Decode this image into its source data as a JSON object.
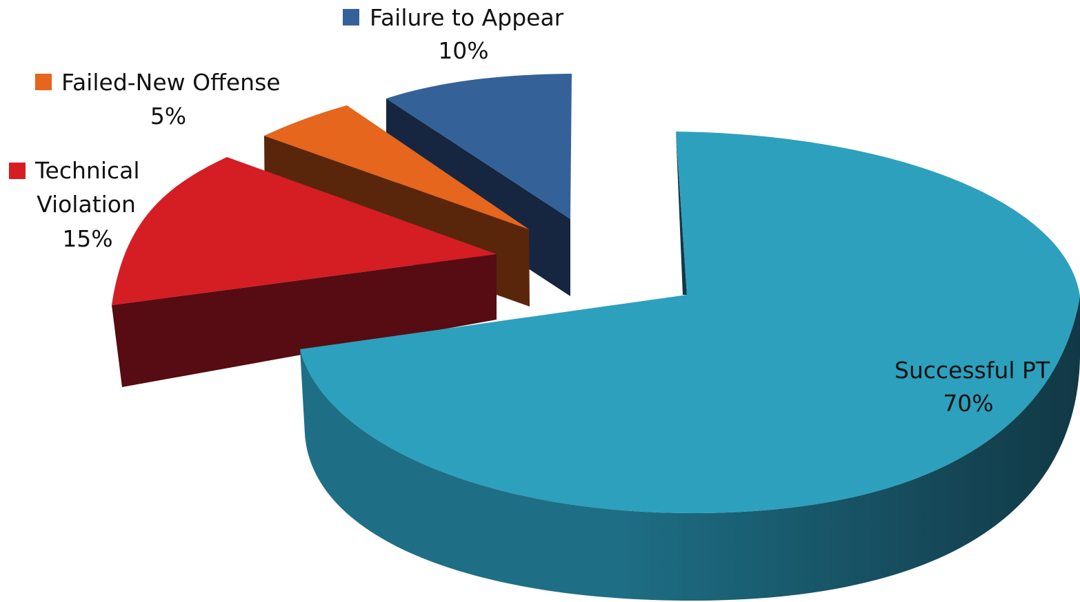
{
  "chart_data": {
    "type": "pie",
    "style": "3d-exploded",
    "title": "",
    "legend": "inline-labels",
    "slices": [
      {
        "name": "Successful PT",
        "value": 70,
        "label": "70%",
        "color": "#2da0bd",
        "side_color": "#1e6f86",
        "dark_color": "#113845"
      },
      {
        "name": "Technical Violation",
        "name_lines": [
          "Technical",
          "Violation"
        ],
        "value": 15,
        "label": "15%",
        "color": "#d51d24",
        "side_color": "#560c12"
      },
      {
        "name": "Failed-New Offense",
        "value": 5,
        "label": "5%",
        "color": "#e5661c",
        "side_color": "#5a260b"
      },
      {
        "name": "Failure to Appear",
        "value": 10,
        "label": "10%",
        "color": "#356199",
        "side_color": "#162640"
      }
    ]
  }
}
